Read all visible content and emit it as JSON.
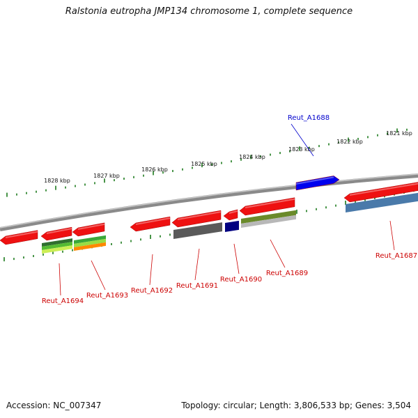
{
  "title": "Ralstonia eutropha JMP134 chromosome 1, complete sequence",
  "footer": {
    "accession": "Accession: NC_007347",
    "summary": "Topology: circular; Length: 3,806,533 bp; Genes: 3,504"
  },
  "scale_labels": [
    "1821 kbp",
    "1822 kbp",
    "1823 kbp",
    "1824 kbp",
    "1825 kbp",
    "1826 kbp",
    "1827 kbp",
    "1828 kbp"
  ],
  "genes": [
    {
      "id": "reut-a1688",
      "label": "Reut_A1688",
      "color": "#0000cc"
    },
    {
      "id": "reut-a1687",
      "label": "Reut_A1687",
      "color": "#cc0000"
    },
    {
      "id": "reut-a1689",
      "label": "Reut_A1689",
      "color": "#cc0000"
    },
    {
      "id": "reut-a1690",
      "label": "Reut_A1690",
      "color": "#cc0000"
    },
    {
      "id": "reut-a1691",
      "label": "Reut_A1691",
      "color": "#cc0000"
    },
    {
      "id": "reut-a1692",
      "label": "Reut_A1692",
      "color": "#cc0000"
    },
    {
      "id": "reut-a1693",
      "label": "Reut_A1693",
      "color": "#cc0000"
    },
    {
      "id": "reut-a1694",
      "label": "Reut_A1694",
      "color": "#cc0000"
    }
  ],
  "colors": {
    "backbone": "#8a8a8a",
    "tick": "#1a7a1a",
    "gene_red": "#ee1111",
    "gene_blue": "#0000ee",
    "domain_green": "#6a8a2a",
    "domain_gray": "#5a5a5a",
    "domain_navy": "#000080",
    "domain_steel": "#4a7aaa"
  }
}
